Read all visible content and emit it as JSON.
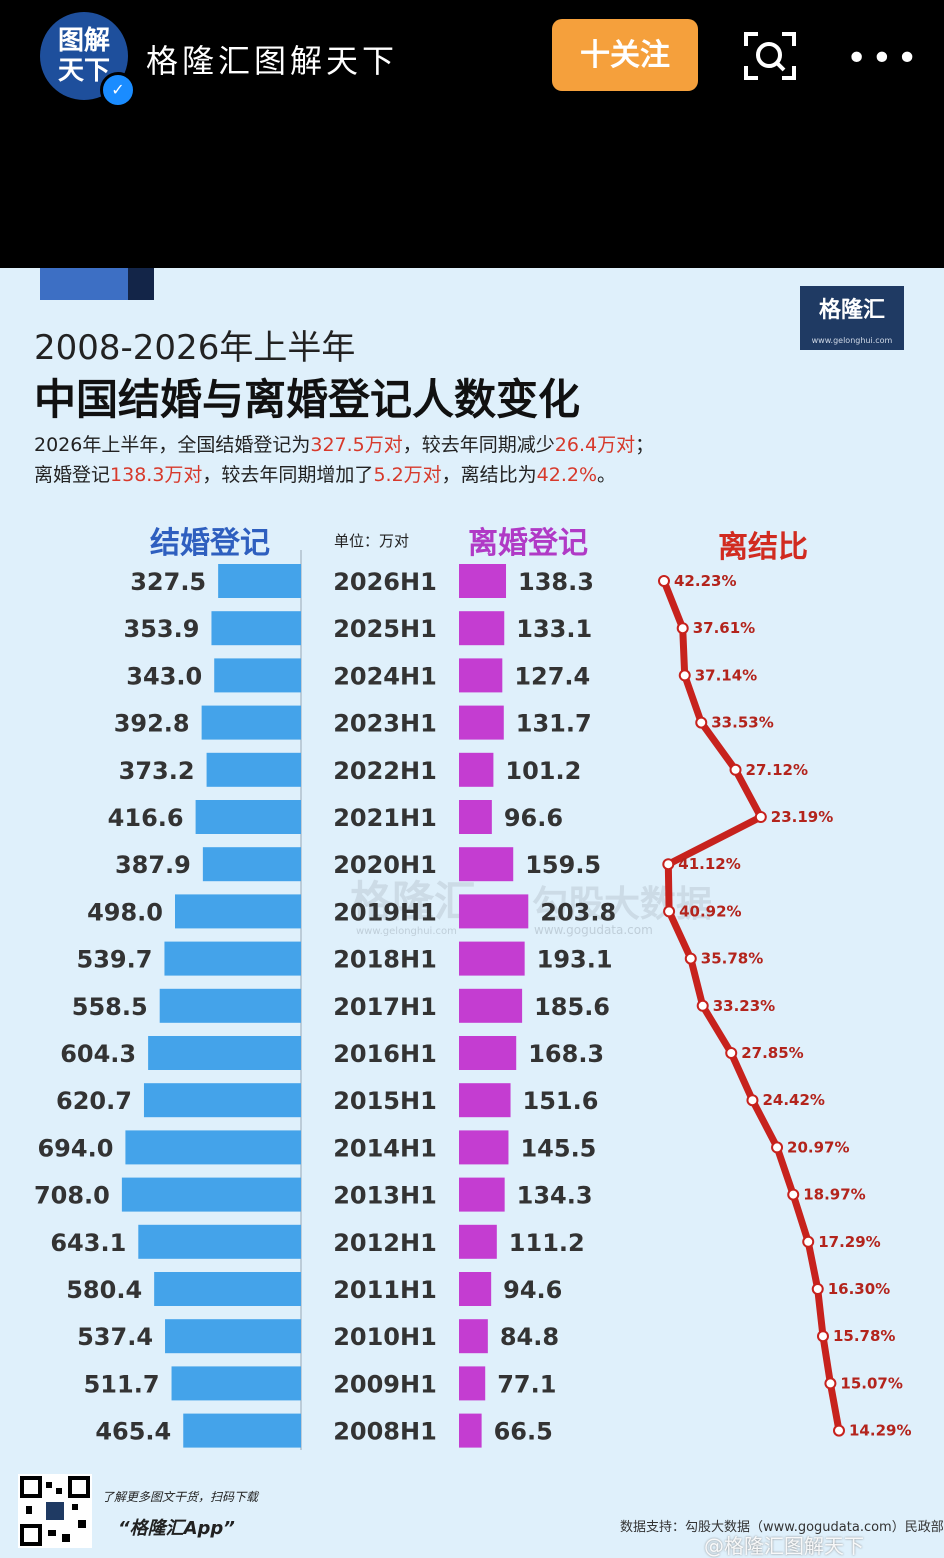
{
  "header": {
    "avatar_line1": "图解",
    "avatar_line2": "天下",
    "account_name": "格隆汇图解天下",
    "follow_label": "十关注",
    "more_label": "•••"
  },
  "poster": {
    "logo_text": "格隆汇",
    "logo_url": "www.gelonghui.com",
    "sub_title": "2008-2026年上半年",
    "main_title": "中国结婚与离婚登记人数变化",
    "summary": {
      "l1_a": "2026年上半年，全国结婚登记为",
      "l1_b": "327.5万对",
      "l1_c": "，较去年同期减少",
      "l1_d": "26.4万对",
      "l1_e": "；",
      "l2_a": "离婚登记",
      "l2_b": "138.3万对",
      "l2_c": "，较去年同期增加了",
      "l2_d": "5.2万对",
      "l2_e": "，离结比为",
      "l2_f": "42.2%",
      "l2_g": "。"
    },
    "col_marriage": "结婚登记",
    "col_unit": "单位：万对",
    "col_divorce": "离婚登记",
    "col_ratio": "离结比",
    "watermark_1": "格隆汇",
    "watermark_1_url": "www.gelonghui.com",
    "watermark_2": "勾股大数据",
    "watermark_2_url": "www.gogudata.com",
    "footer_note": "了解更多图文干货，扫码下载",
    "footer_app": "“格隆汇App”",
    "footer_source": "数据支持：勾股大数据（www.gogudata.com）民政部",
    "weibo_mark": "@格隆汇图解天下"
  },
  "colors": {
    "marriage_bar": "#44a3ea",
    "divorce_bar": "#c43dd1",
    "ratio_line": "#c7221d",
    "accent_orange": "#f5a03c",
    "marriage_head": "#2e5fbf",
    "divorce_head": "#b03ac6",
    "ratio_head": "#d12b20"
  },
  "chart_data": {
    "type": "bar",
    "categories": [
      "2026H1",
      "2025H1",
      "2024H1",
      "2023H1",
      "2022H1",
      "2021H1",
      "2020H1",
      "2019H1",
      "2018H1",
      "2017H1",
      "2016H1",
      "2015H1",
      "2014H1",
      "2013H1",
      "2012H1",
      "2011H1",
      "2010H1",
      "2009H1",
      "2008H1"
    ],
    "series": [
      {
        "name": "结婚登记",
        "values": [
          327.5,
          353.9,
          343.0,
          392.8,
          373.2,
          416.6,
          387.9,
          498.0,
          539.7,
          558.5,
          604.3,
          620.7,
          694.0,
          708.0,
          643.1,
          580.4,
          537.4,
          511.7,
          465.4
        ]
      },
      {
        "name": "离婚登记",
        "values": [
          138.3,
          133.1,
          127.4,
          131.7,
          101.2,
          96.6,
          159.5,
          203.8,
          193.1,
          185.6,
          168.3,
          151.6,
          145.5,
          134.3,
          111.2,
          94.6,
          84.8,
          77.1,
          66.5
        ]
      },
      {
        "name": "离结比",
        "type": "line",
        "values": [
          42.23,
          37.61,
          37.14,
          33.53,
          27.12,
          23.19,
          41.12,
          40.92,
          35.78,
          33.23,
          27.85,
          24.42,
          20.97,
          18.97,
          17.29,
          16.3,
          15.78,
          15.07,
          14.29
        ]
      }
    ],
    "marriage_labels": [
      "327.5",
      "353.9",
      "343.0",
      "392.8",
      "373.2",
      "416.6",
      "387.9",
      "498.0",
      "539.7",
      "558.5",
      "604.3",
      "620.7",
      "694.0",
      "708.0",
      "643.1",
      "580.4",
      "537.4",
      "511.7",
      "465.4"
    ],
    "divorce_labels": [
      "138.3",
      "133.1",
      "127.4",
      "131.7",
      "101.2",
      "96.6",
      "159.5",
      "203.8",
      "193.1",
      "185.6",
      "168.3",
      "151.6",
      "145.5",
      "134.3",
      "111.2",
      "94.6",
      "84.8",
      "77.1",
      "66.5"
    ],
    "ratio_labels": [
      "42.23%",
      "37.61%",
      "37.14%",
      "33.53%",
      "27.12%",
      "23.19%",
      "41.12%",
      "40.92%",
      "35.78%",
      "33.23%",
      "27.85%",
      "24.42%",
      "20.97%",
      "18.97%",
      "17.29%",
      "16.30%",
      "15.78%",
      "15.07%",
      "14.29%"
    ],
    "unit": "万对"
  }
}
